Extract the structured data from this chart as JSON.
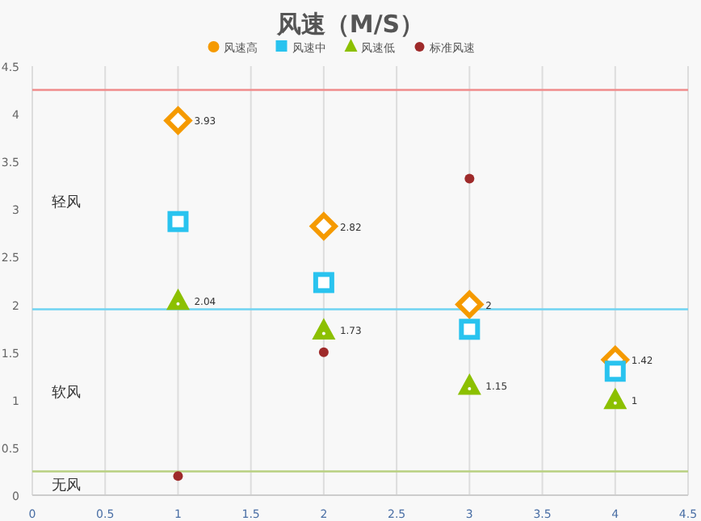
{
  "chart_data": {
    "type": "scatter",
    "title": "风速（M/S）",
    "x": [
      1,
      2,
      3,
      4
    ],
    "series": [
      {
        "name": "风速高",
        "color": "#f59a00",
        "marker": "diamond",
        "values": [
          3.93,
          2.82,
          2,
          1.42
        ],
        "value_labels": [
          "3.93",
          "2.82",
          "2",
          "1.42"
        ]
      },
      {
        "name": "风速中",
        "color": "#29c3ef",
        "marker": "square",
        "values": [
          2.87,
          2.23,
          1.74,
          1.3
        ]
      },
      {
        "name": "风速低",
        "color": "#8cc000",
        "marker": "triangle",
        "values": [
          2.04,
          1.73,
          1.15,
          1
        ],
        "value_labels": [
          "2.04",
          "1.73",
          "1.15",
          "1"
        ]
      },
      {
        "name": "标准风速",
        "color": "#9e2a2a",
        "marker": "circle",
        "values": [
          0.2,
          1.5,
          3.32,
          null
        ]
      }
    ],
    "xlim": [
      0,
      4.5
    ],
    "xticks": [
      0,
      0.5,
      1,
      1.5,
      2,
      2.5,
      3,
      3.5,
      4,
      4.5
    ],
    "ylim": [
      0,
      4.5
    ],
    "yticks": [
      0,
      0.5,
      1,
      1.5,
      2,
      2.5,
      3,
      3.5,
      4,
      4.5
    ],
    "grid": "x",
    "legend": "top",
    "ref_lines": [
      {
        "axis": "y",
        "value": 4.25,
        "color": "#f08c8c"
      },
      {
        "axis": "y",
        "value": 1.95,
        "color": "#6fd3f2"
      },
      {
        "axis": "y",
        "value": 0.25,
        "color": "#b8d080"
      }
    ],
    "annotations": [
      "轻风",
      "软风",
      "无风"
    ]
  }
}
